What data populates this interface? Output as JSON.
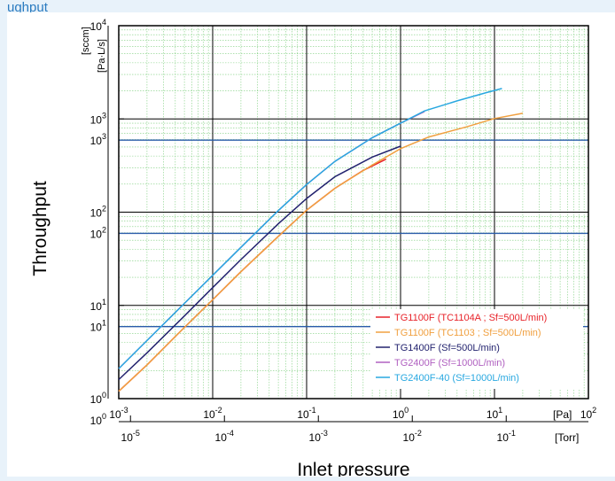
{
  "header_text": "ughput",
  "chart_data": {
    "type": "line",
    "xlabel": "Inlet pressure",
    "ylabel": "Throughput",
    "x_scale": "log",
    "y_scale": "log",
    "x_unit": "[Pa]",
    "x2_unit": "[Torr]",
    "y_unit": "[Pa·L/s]",
    "y2_unit": "[sccm]",
    "xlim": [
      0.001,
      100
    ],
    "ylim": [
      1,
      10000
    ],
    "x_ticks": [
      {
        "base": "10",
        "exp": "-3",
        "value": 0.001
      },
      {
        "base": "10",
        "exp": "-2",
        "value": 0.01
      },
      {
        "base": "10",
        "exp": "-1",
        "value": 0.1
      },
      {
        "base": "10",
        "exp": "0",
        "value": 1
      },
      {
        "base": "10",
        "exp": "1",
        "value": 10
      },
      {
        "base": "10",
        "exp": "2",
        "value": 100
      }
    ],
    "x2_ticks": [
      {
        "base": "10",
        "exp": "-5",
        "value": 1e-05
      },
      {
        "base": "10",
        "exp": "-4",
        "value": 0.0001
      },
      {
        "base": "10",
        "exp": "-3",
        "value": 0.001
      },
      {
        "base": "10",
        "exp": "-2",
        "value": 0.01
      },
      {
        "base": "10",
        "exp": "-1",
        "value": 0.1
      }
    ],
    "y_ticks": [
      {
        "base": "10",
        "exp": "0",
        "value": 1
      },
      {
        "base": "10",
        "exp": "1",
        "value": 10
      },
      {
        "base": "10",
        "exp": "2",
        "value": 100
      },
      {
        "base": "10",
        "exp": "3",
        "value": 1000
      },
      {
        "base": "10",
        "exp": "4",
        "value": 10000
      }
    ],
    "y2_ticks": [
      {
        "base": "10",
        "exp": "0",
        "value": 0.592
      },
      {
        "base": "10",
        "exp": "1",
        "value": 5.92
      },
      {
        "base": "10",
        "exp": "2",
        "value": 59.2
      },
      {
        "base": "10",
        "exp": "3",
        "value": 592
      }
    ],
    "y2_factor": 0.592,
    "grid": true,
    "legend_position": "bottom-right",
    "series": [
      {
        "name": "TG1100F (TC1104A ; Sf=500L/min)",
        "color": "#e8232a",
        "x": [
          0.001,
          0.002,
          0.005,
          0.01,
          0.02,
          0.05,
          0.1,
          0.2,
          0.4,
          0.7
        ],
        "y": [
          1.2,
          2.3,
          5.8,
          11.5,
          23,
          55,
          105,
          180,
          280,
          370
        ]
      },
      {
        "name": "TG1100F (TC1103 ; Sf=500L/min)",
        "color": "#f0a040",
        "x": [
          0.001,
          0.002,
          0.005,
          0.01,
          0.02,
          0.05,
          0.1,
          0.2,
          0.5,
          1,
          2,
          5,
          10,
          20
        ],
        "y": [
          1.2,
          2.3,
          5.8,
          11.5,
          23,
          55,
          105,
          180,
          320,
          480,
          640,
          820,
          1010,
          1150
        ]
      },
      {
        "name": "TG1400F (Sf=500L/min)",
        "color": "#22226e",
        "x": [
          0.001,
          0.002,
          0.005,
          0.01,
          0.02,
          0.05,
          0.1,
          0.2,
          0.5,
          1
        ],
        "y": [
          1.6,
          3.1,
          7.7,
          15.5,
          31,
          75,
          140,
          240,
          390,
          510
        ]
      },
      {
        "name": "TG2400F (Sf=1000L/min)",
        "color": "#b060c0",
        "x": [
          0.001,
          0.002,
          0.005,
          0.01,
          0.02,
          0.05,
          0.1,
          0.2,
          0.5,
          1,
          1.8
        ],
        "y": [
          2.1,
          4.2,
          10.5,
          21,
          42,
          104,
          198,
          350,
          630,
          900,
          1200
        ]
      },
      {
        "name": "TG2400F-40 (Sf=1000L/min)",
        "color": "#29a8e0",
        "x": [
          0.001,
          0.002,
          0.005,
          0.01,
          0.02,
          0.05,
          0.1,
          0.2,
          0.5,
          1,
          1.8,
          4,
          8,
          12
        ],
        "y": [
          2.1,
          4.2,
          10.5,
          21,
          42,
          104,
          198,
          350,
          630,
          900,
          1220,
          1560,
          1900,
          2120
        ]
      }
    ]
  }
}
